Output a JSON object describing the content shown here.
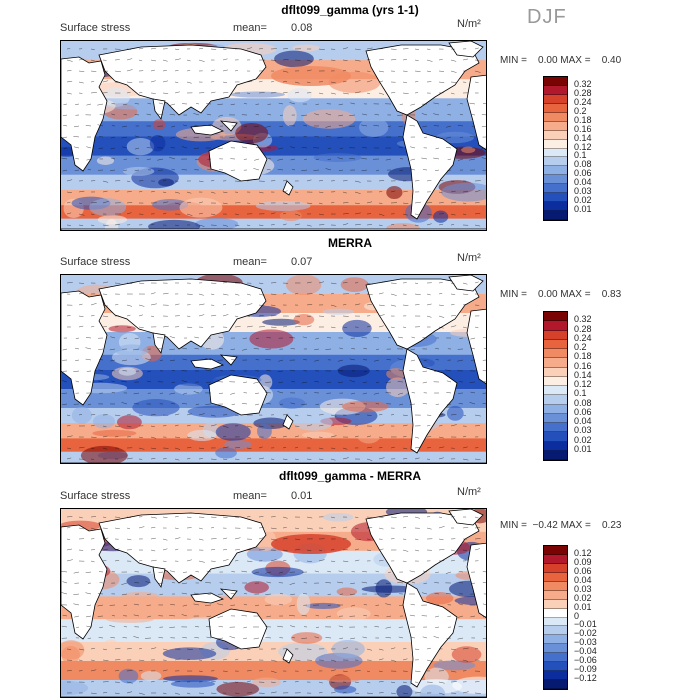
{
  "season": "DJF",
  "panels": [
    {
      "title": "dflt099_gamma (yrs 1-1)",
      "variable": "Surface stress",
      "mean_label": "mean=",
      "mean_value": "0.08",
      "unit": "N/m²",
      "minmax": "MIN =    0.00 MAX =    0.40",
      "colorbar_levels": [
        "0.32",
        "0.28",
        "0.24",
        "0.2",
        "0.18",
        "0.16",
        "0.14",
        "0.12",
        "0.1",
        "0.08",
        "0.06",
        "0.04",
        "0.03",
        "0.02",
        "0.01"
      ]
    },
    {
      "title": "MERRA",
      "variable": "Surface stress",
      "mean_label": "mean=",
      "mean_value": "0.07",
      "unit": "N/m²",
      "minmax": "MIN =    0.00 MAX =    0.83",
      "colorbar_levels": [
        "0.32",
        "0.28",
        "0.24",
        "0.2",
        "0.18",
        "0.16",
        "0.14",
        "0.12",
        "0.1",
        "0.08",
        "0.06",
        "0.04",
        "0.03",
        "0.02",
        "0.01"
      ]
    },
    {
      "title": "dflt099_gamma - MERRA",
      "variable": "Surface stress",
      "mean_label": "mean=",
      "mean_value": "0.01",
      "unit": "N/m²",
      "minmax": "MIN =  −0.42 MAX =    0.23",
      "colorbar_levels": [
        "0.12",
        "0.09",
        "0.06",
        "0.04",
        "0.03",
        "0.02",
        "0.01",
        "0",
        "−0.01",
        "−0.02",
        "−0.03",
        "−0.04",
        "−0.06",
        "−0.09",
        "−0.12"
      ]
    }
  ],
  "colors": {
    "abs_scale": [
      "#7a0403",
      "#b2182b",
      "#d6412b",
      "#e8643f",
      "#f08a62",
      "#f6ac8a",
      "#fbd0b9",
      "#fdeee4",
      "#dbe8f6",
      "#b6cdee",
      "#8fb0e4",
      "#6a90d8",
      "#4570cc",
      "#2450bb",
      "#0b2d9e",
      "#061a72"
    ],
    "diff_scale": [
      "#7a0403",
      "#b2182b",
      "#d6412b",
      "#e8643f",
      "#f08a62",
      "#f6ac8a",
      "#fbd0b9",
      "#ffffff",
      "#dbe8f6",
      "#b6cdee",
      "#8fb0e4",
      "#6a90d8",
      "#4570cc",
      "#2450bb",
      "#0b2d9e",
      "#061a72"
    ]
  }
}
